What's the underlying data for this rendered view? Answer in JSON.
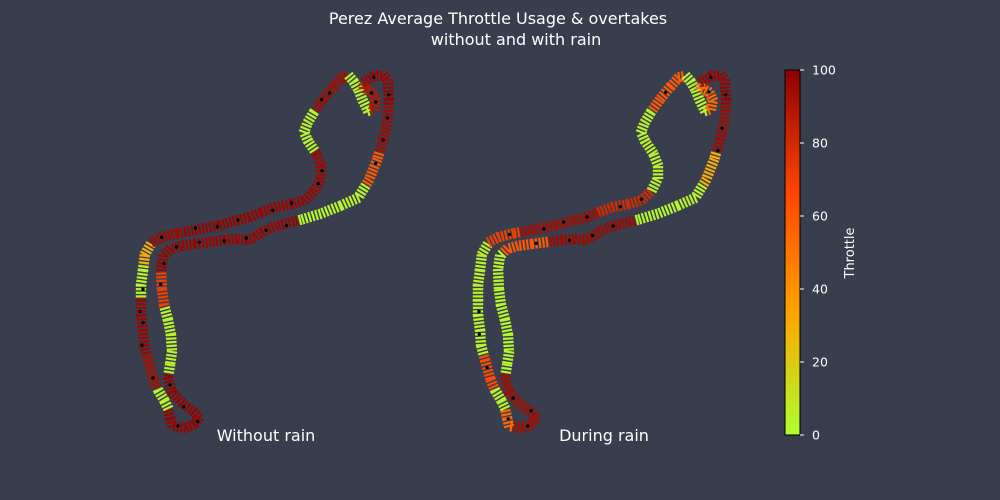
{
  "chart_data": {
    "type": "scatter",
    "title_lines": [
      "Perez Average Throttle Usage & overtakes",
      "without and with rain"
    ],
    "panels": [
      {
        "label": "Without rain",
        "throttle_segments": [
          {
            "from": 0.0,
            "to": 0.02,
            "throttle": 97
          },
          {
            "from": 0.02,
            "to": 0.06,
            "throttle": 94
          },
          {
            "from": 0.06,
            "to": 0.09,
            "throttle": 60
          },
          {
            "from": 0.09,
            "to": 0.12,
            "throttle": 4
          },
          {
            "from": 0.12,
            "to": 0.16,
            "throttle": 3
          },
          {
            "from": 0.16,
            "to": 0.3,
            "throttle": 96
          },
          {
            "from": 0.3,
            "to": 0.33,
            "throttle": 70
          },
          {
            "from": 0.33,
            "to": 0.37,
            "throttle": 5
          },
          {
            "from": 0.37,
            "to": 0.39,
            "throttle": 4
          },
          {
            "from": 0.39,
            "to": 0.48,
            "throttle": 97
          },
          {
            "from": 0.48,
            "to": 0.5,
            "throttle": 5
          },
          {
            "from": 0.5,
            "to": 0.53,
            "throttle": 92
          },
          {
            "from": 0.53,
            "to": 0.58,
            "throttle": 96
          },
          {
            "from": 0.58,
            "to": 0.61,
            "throttle": 4
          },
          {
            "from": 0.61,
            "to": 0.63,
            "throttle": 30
          },
          {
            "from": 0.63,
            "to": 0.66,
            "throttle": 95
          },
          {
            "from": 0.66,
            "to": 0.73,
            "throttle": 97
          },
          {
            "from": 0.73,
            "to": 0.78,
            "throttle": 96
          },
          {
            "from": 0.78,
            "to": 0.82,
            "throttle": 95
          },
          {
            "from": 0.82,
            "to": 0.86,
            "throttle": 4
          },
          {
            "from": 0.86,
            "to": 0.9,
            "throttle": 93
          },
          {
            "from": 0.9,
            "to": 0.94,
            "throttle": 4
          },
          {
            "from": 0.94,
            "to": 0.97,
            "throttle": 88
          },
          {
            "from": 0.97,
            "to": 1.0,
            "throttle": 96
          }
        ]
      },
      {
        "label": "During rain",
        "throttle_segments": [
          {
            "from": 0.0,
            "to": 0.02,
            "throttle": 97
          },
          {
            "from": 0.02,
            "to": 0.06,
            "throttle": 94
          },
          {
            "from": 0.06,
            "to": 0.09,
            "throttle": 30
          },
          {
            "from": 0.09,
            "to": 0.12,
            "throttle": 4
          },
          {
            "from": 0.12,
            "to": 0.16,
            "throttle": 3
          },
          {
            "from": 0.16,
            "to": 0.24,
            "throttle": 95
          },
          {
            "from": 0.24,
            "to": 0.28,
            "throttle": 60
          },
          {
            "from": 0.28,
            "to": 0.31,
            "throttle": 4
          },
          {
            "from": 0.31,
            "to": 0.39,
            "throttle": 3
          },
          {
            "from": 0.39,
            "to": 0.46,
            "throttle": 93
          },
          {
            "from": 0.46,
            "to": 0.48,
            "throttle": 55
          },
          {
            "from": 0.48,
            "to": 0.5,
            "throttle": 5
          },
          {
            "from": 0.5,
            "to": 0.53,
            "throttle": 65
          },
          {
            "from": 0.53,
            "to": 0.58,
            "throttle": 4
          },
          {
            "from": 0.58,
            "to": 0.63,
            "throttle": 5
          },
          {
            "from": 0.63,
            "to": 0.66,
            "throttle": 70
          },
          {
            "from": 0.66,
            "to": 0.73,
            "throttle": 93
          },
          {
            "from": 0.73,
            "to": 0.78,
            "throttle": 80
          },
          {
            "from": 0.78,
            "to": 0.82,
            "throttle": 5
          },
          {
            "from": 0.82,
            "to": 0.86,
            "throttle": 4
          },
          {
            "from": 0.86,
            "to": 0.9,
            "throttle": 60
          },
          {
            "from": 0.9,
            "to": 0.94,
            "throttle": 4
          },
          {
            "from": 0.94,
            "to": 0.97,
            "throttle": 55
          },
          {
            "from": 0.97,
            "to": 1.0,
            "throttle": 96
          }
        ]
      }
    ],
    "colorbar": {
      "label": "Throttle",
      "range": [
        0,
        100
      ],
      "ticks": [
        0,
        20,
        40,
        60,
        80,
        100
      ],
      "colors": [
        "#adff2f",
        "#ffa500",
        "#ff4500",
        "#8b0000"
      ]
    },
    "overtake_marker_color": "#000000",
    "track_low_throttle_color": "#adff2f",
    "track_high_throttle_color": "#8b0000",
    "axes_visible": false,
    "grid": false
  }
}
